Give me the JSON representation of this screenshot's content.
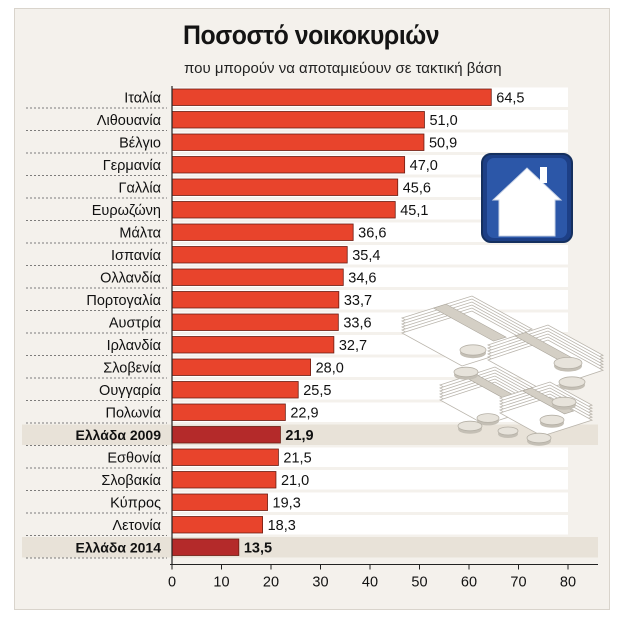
{
  "header": {
    "title": "Ποσοστό νοικοκυριών",
    "subtitle": "που μπορούν να αποταμιεύουν σε τακτική βάση"
  },
  "colors": {
    "bar": "#e8442c",
    "bar_highlight": "#b42a2a",
    "band_highlight": "#e8e2d8",
    "stripe": "#ffffff",
    "icon_house": "#2c57a8"
  },
  "chart_data": {
    "type": "bar",
    "orientation": "horizontal",
    "categories": [
      "Ιταλία",
      "Λιθουανία",
      "Βέλγιο",
      "Γερμανία",
      "Γαλλία",
      "Ευρωζώνη",
      "Μάλτα",
      "Ισπανία",
      "Ολλανδία",
      "Πορτογαλία",
      "Αυστρία",
      "Ιρλανδία",
      "Σλοβενία",
      "Ουγγαρία",
      "Πολωνία",
      "Ελλάδα 2009",
      "Εσθονία",
      "Σλοβακία",
      "Κύπρος",
      "Λετονία",
      "Ελλάδα 2014"
    ],
    "values": [
      64.5,
      51.0,
      50.9,
      47.0,
      45.6,
      45.1,
      36.6,
      35.4,
      34.6,
      33.7,
      33.6,
      32.7,
      28.0,
      25.5,
      22.9,
      21.9,
      21.5,
      21.0,
      19.3,
      18.3,
      13.5
    ],
    "value_labels": [
      "64,5",
      "51,0",
      "50,9",
      "47,0",
      "45,6",
      "45,1",
      "36,6",
      "35,4",
      "34,6",
      "33,7",
      "33,6",
      "32,7",
      "28,0",
      "25,5",
      "22,9",
      "21,9",
      "21,5",
      "21,0",
      "19,3",
      "18,3",
      "13,5"
    ],
    "highlighted": [
      "Ελλάδα 2009",
      "Ελλάδα 2014"
    ],
    "xlim": [
      0,
      85
    ],
    "xticks": [
      0,
      10,
      20,
      30,
      40,
      50,
      60,
      70,
      80
    ],
    "grid": false,
    "title": "Ποσοστό νοικοκυριών",
    "subtitle": "που μπορούν να αποταμιεύουν σε τακτική βάση"
  }
}
